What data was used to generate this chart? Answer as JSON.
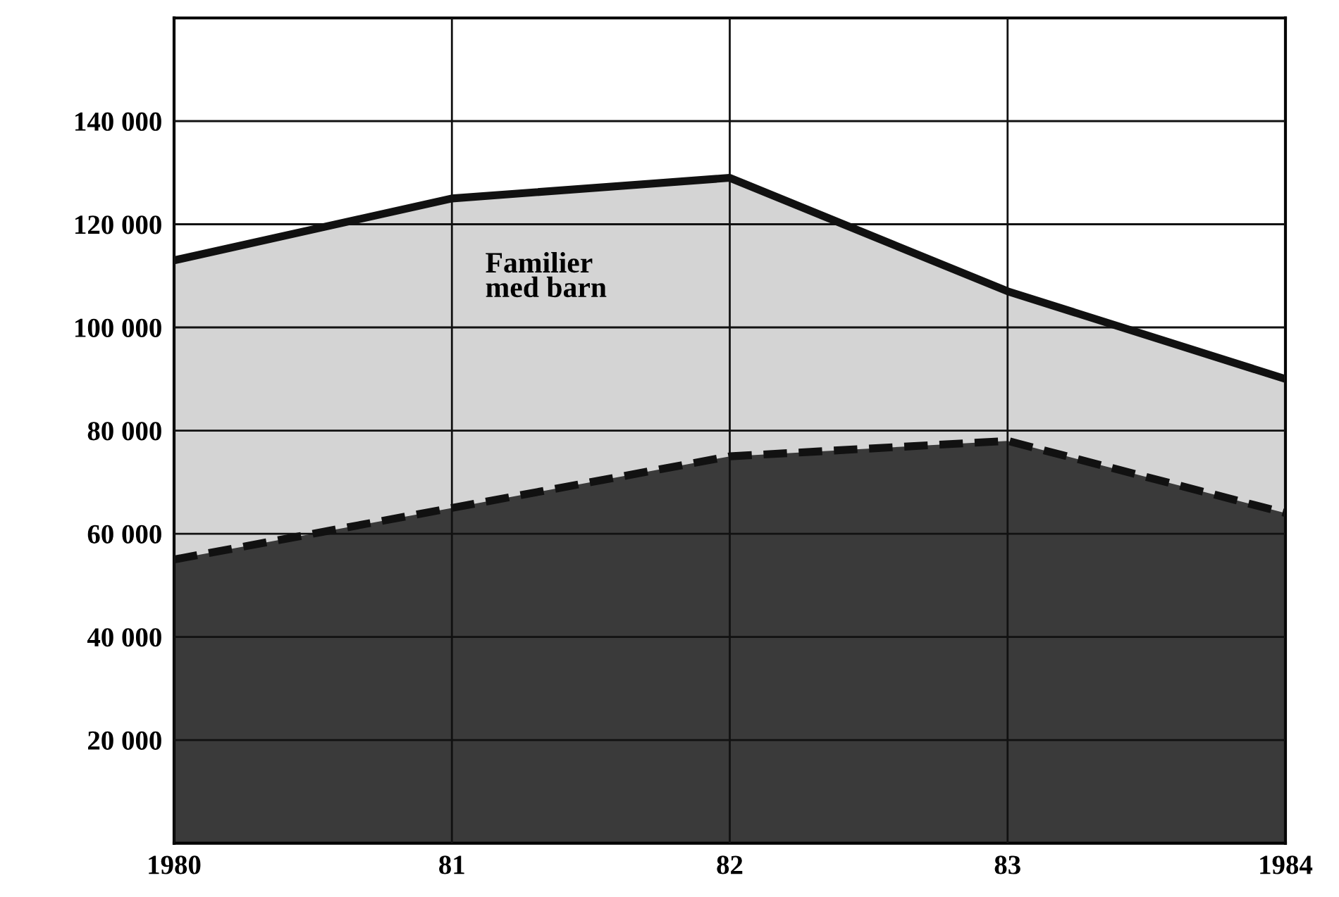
{
  "chart_data": {
    "type": "area",
    "x": [
      1980,
      1981,
      1982,
      1983,
      1984
    ],
    "series": [
      {
        "name": "Familier med barn",
        "color": "#d4d4d4",
        "line_style": "solid",
        "values": [
          113000,
          125000,
          129000,
          107000,
          90000
        ]
      },
      {
        "color": "#3a3a3a",
        "line_style": "dashed",
        "values": [
          55000,
          65000,
          75000,
          78000,
          64000
        ]
      }
    ],
    "xlim": [
      1980,
      1984
    ],
    "xticks": [
      1980,
      {
        "value": 1981,
        "label": "81"
      },
      {
        "value": 1982,
        "label": "82"
      },
      {
        "value": 1983,
        "label": "83"
      },
      1984
    ],
    "ylim": [
      0,
      160000
    ],
    "yticks": [
      {
        "value": 20000,
        "label": "20 000"
      },
      {
        "value": 40000,
        "label": "40 000"
      },
      {
        "value": 60000,
        "label": "60 000"
      },
      {
        "value": 80000,
        "label": "80 000"
      },
      {
        "value": 100000,
        "label": "100 000"
      },
      {
        "value": 120000,
        "label": "120 000"
      },
      {
        "value": 140000,
        "label": "140 000"
      }
    ],
    "grid": true,
    "legend": false,
    "marker": "none"
  }
}
